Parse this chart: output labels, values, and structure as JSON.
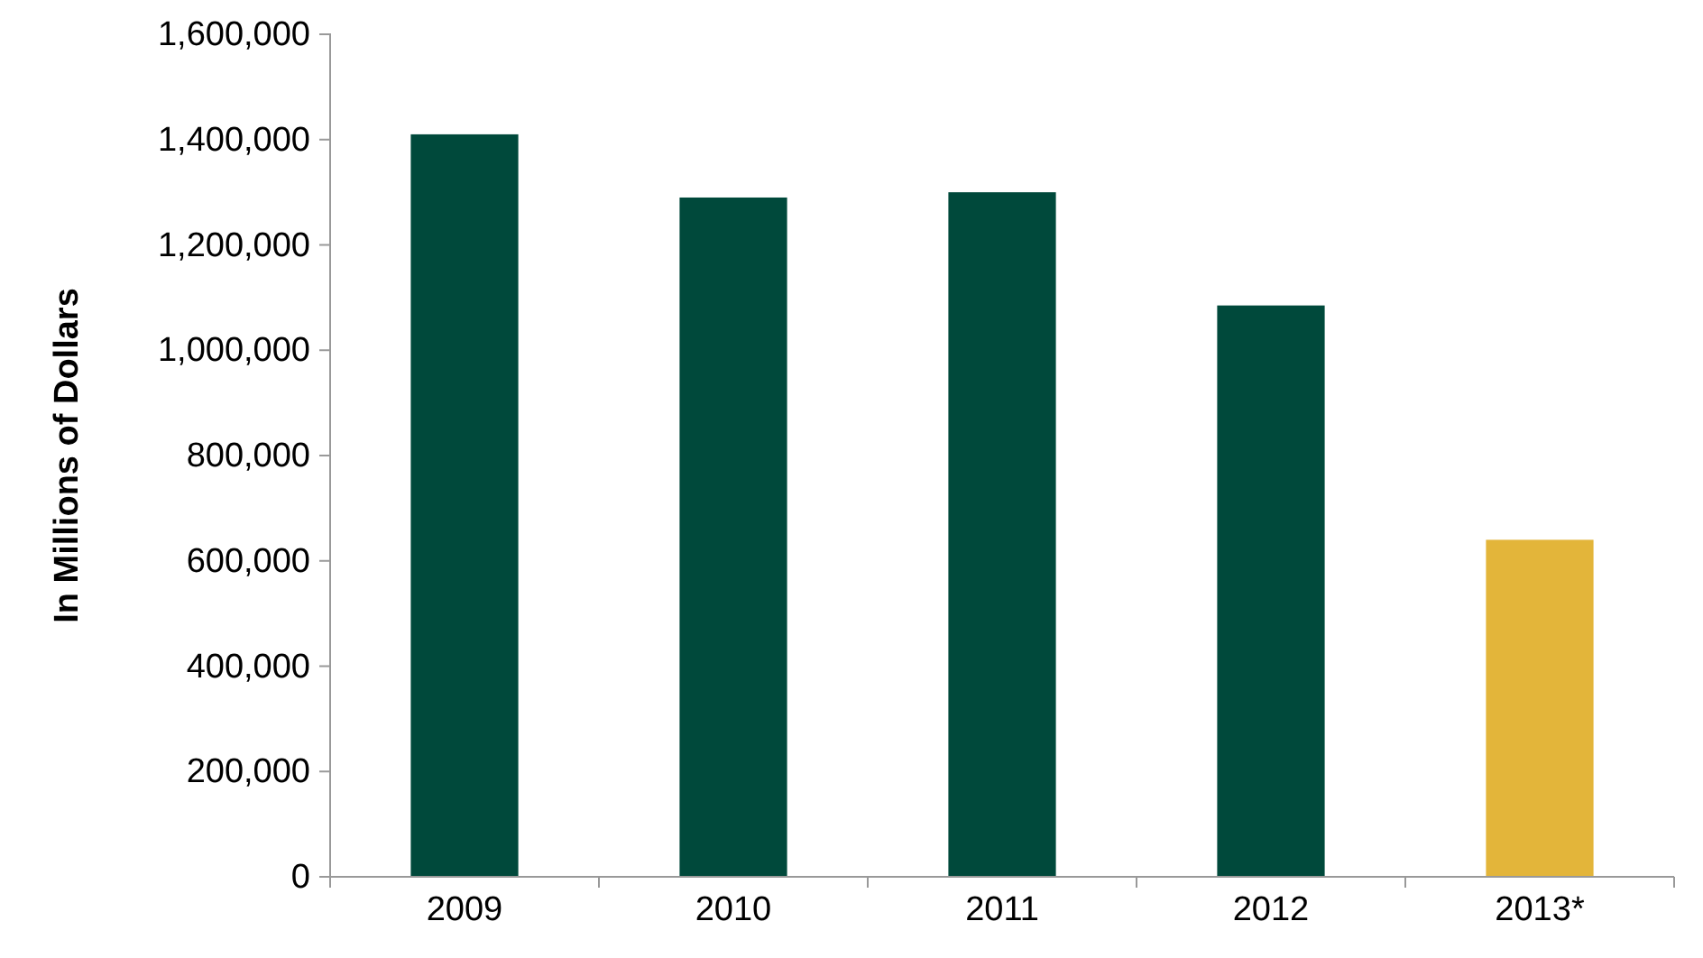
{
  "chart_data": {
    "type": "bar",
    "ylabel": "In Millions  of Dollars",
    "categories": [
      "2009",
      "2010",
      "2011",
      "2012",
      "2013*"
    ],
    "values": [
      1410000,
      1290000,
      1300000,
      1085000,
      640000
    ],
    "colors": [
      "#00493b",
      "#00493b",
      "#00493b",
      "#00493b",
      "#e3b53a"
    ],
    "ylim": [
      0,
      1600000
    ],
    "yticks": [
      {
        "value": 0,
        "label": "0"
      },
      {
        "value": 200000,
        "label": "200,000"
      },
      {
        "value": 400000,
        "label": "400,000"
      },
      {
        "value": 600000,
        "label": "600,000"
      },
      {
        "value": 800000,
        "label": "800,000"
      },
      {
        "value": 1000000,
        "label": "1,000,000"
      },
      {
        "value": 1200000,
        "label": "1,200,000"
      },
      {
        "value": 1400000,
        "label": "1,400,000"
      },
      {
        "value": 1600000,
        "label": "1,600,000"
      }
    ],
    "grid": false
  }
}
